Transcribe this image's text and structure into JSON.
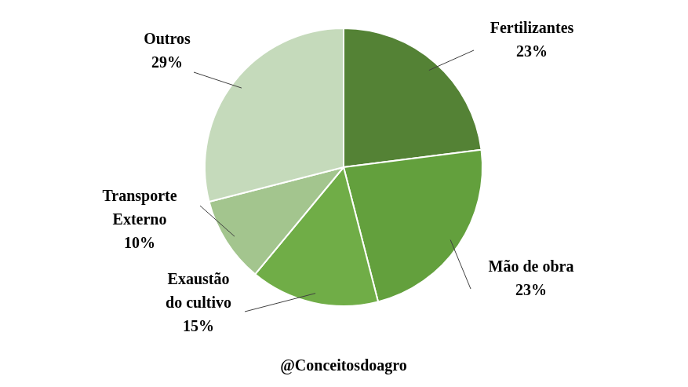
{
  "chart_data": {
    "type": "pie",
    "categories": [
      "Fertilizantes",
      "Mão de obra",
      "Exaustão do cultivo",
      "Transporte Externo",
      "Outros"
    ],
    "values": [
      23,
      23,
      15,
      10,
      29
    ],
    "value_labels": [
      "23%",
      "23%",
      "15%",
      "10%",
      "29%"
    ],
    "colors": [
      "#548235",
      "#63a03d",
      "#70ad47",
      "#a3c58e",
      "#c5dabb"
    ],
    "data_labels": true,
    "annotations": [
      "@Conceitosdoagro"
    ]
  }
}
